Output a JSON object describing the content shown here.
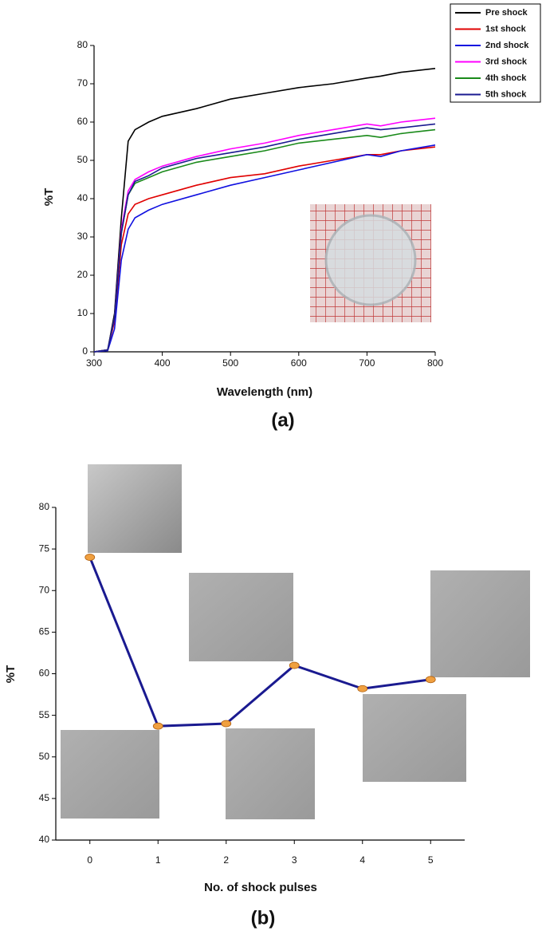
{
  "chart_data": [
    {
      "type": "line",
      "label": "(a)",
      "x_label": "Wavelength (nm)",
      "y_label": "%T",
      "x": [
        300,
        320,
        330,
        340,
        350,
        360,
        380,
        400,
        450,
        500,
        550,
        600,
        650,
        700,
        720,
        750,
        800
      ],
      "series": [
        {
          "name": "Pre shock",
          "color": "#000000",
          "values": [
            0,
            0.5,
            10,
            35,
            55,
            58,
            60,
            61.5,
            63.5,
            66,
            67.5,
            69,
            70,
            71.5,
            72,
            73,
            74
          ]
        },
        {
          "name": "1st shock",
          "color": "#e00000",
          "values": [
            0,
            0.5,
            8,
            28,
            36,
            38.5,
            40,
            41,
            43.5,
            45.5,
            46.5,
            48.5,
            50,
            51.5,
            51.5,
            52.5,
            53.5
          ]
        },
        {
          "name": "2nd shock",
          "color": "#1010e0",
          "values": [
            0,
            0.3,
            6,
            24,
            32,
            35,
            37,
            38.5,
            41,
            43.5,
            45.5,
            47.5,
            49.5,
            51.5,
            51,
            52.5,
            54
          ]
        },
        {
          "name": "3rd shock",
          "color": "#ff00ff",
          "values": [
            0,
            0.5,
            9,
            32,
            42,
            45,
            47,
            48.5,
            51,
            53,
            54.5,
            56.5,
            58,
            59.5,
            59,
            60,
            61
          ]
        },
        {
          "name": "4th shock",
          "color": "#1a8a1a",
          "values": [
            0,
            0.5,
            9,
            31,
            41,
            44,
            45.5,
            47,
            49.5,
            51,
            52.5,
            54.5,
            55.5,
            56.5,
            56,
            57,
            58
          ]
        },
        {
          "name": "5th shock",
          "color": "#1a1a90",
          "values": [
            0,
            0.5,
            9,
            31,
            41,
            44.5,
            46,
            48,
            50.5,
            52,
            53.5,
            55.5,
            57,
            58.5,
            58,
            58.5,
            59.5
          ]
        }
      ],
      "xlim": [
        300,
        800
      ],
      "xticks": [
        300,
        400,
        500,
        600,
        700,
        800
      ],
      "ylim": [
        0,
        80
      ],
      "yticks": [
        0,
        10,
        20,
        30,
        40,
        50,
        60,
        70,
        80
      ],
      "legend": "upper right"
    },
    {
      "type": "line",
      "label": "(b)",
      "x_label": "No. of shock pulses",
      "y_label": "%T",
      "x": [
        0,
        1,
        2,
        3,
        4,
        5
      ],
      "values": [
        74,
        53.7,
        54,
        61,
        58.2,
        59.3
      ],
      "color": "#1a1a90",
      "markers": true,
      "marker_color": "#f0a040",
      "xlim": [
        -0.5,
        5.5
      ],
      "xticks": [
        0,
        1,
        2,
        3,
        4,
        5
      ],
      "ylim": [
        40,
        80
      ],
      "yticks": [
        40,
        45,
        50,
        55,
        60,
        65,
        70,
        75,
        80
      ]
    }
  ]
}
